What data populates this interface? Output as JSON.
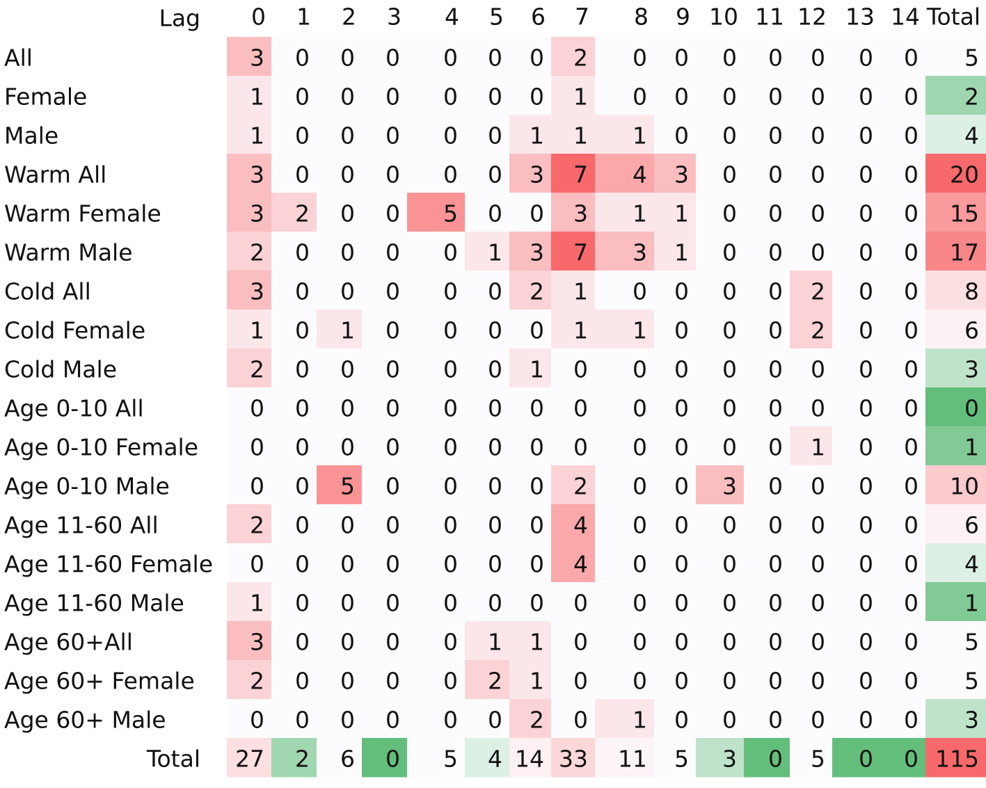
{
  "chart_data": {
    "type": "heatmap",
    "corner_label": "Lag",
    "columns": [
      "0",
      "1",
      "2",
      "3",
      "4",
      "5",
      "6",
      "7",
      "8",
      "9",
      "10",
      "11",
      "12",
      "13",
      "14",
      "Total"
    ],
    "rows": [
      "All",
      "Female",
      "Male",
      "Warm All",
      "Warm Female",
      "Warm Male",
      "Cold All",
      "Cold Female",
      "Cold Male",
      "Age 0-10 All",
      "Age 0-10 Female",
      "Age 0-10 Male",
      "Age 11-60 All",
      "Age 11-60 Female",
      "Age 11-60 Male",
      "Age 60+All",
      "Age 60+ Female",
      "Age 60+ Male",
      "Total"
    ],
    "values": [
      [
        3,
        0,
        0,
        0,
        0,
        0,
        0,
        2,
        0,
        0,
        0,
        0,
        0,
        0,
        0,
        5
      ],
      [
        1,
        0,
        0,
        0,
        0,
        0,
        0,
        1,
        0,
        0,
        0,
        0,
        0,
        0,
        0,
        2
      ],
      [
        1,
        0,
        0,
        0,
        0,
        0,
        1,
        1,
        1,
        0,
        0,
        0,
        0,
        0,
        0,
        4
      ],
      [
        3,
        0,
        0,
        0,
        0,
        0,
        3,
        7,
        4,
        3,
        0,
        0,
        0,
        0,
        0,
        20
      ],
      [
        3,
        2,
        0,
        0,
        5,
        0,
        0,
        3,
        1,
        1,
        0,
        0,
        0,
        0,
        0,
        15
      ],
      [
        2,
        0,
        0,
        0,
        0,
        1,
        3,
        7,
        3,
        1,
        0,
        0,
        0,
        0,
        0,
        17
      ],
      [
        3,
        0,
        0,
        0,
        0,
        0,
        2,
        1,
        0,
        0,
        0,
        0,
        2,
        0,
        0,
        8
      ],
      [
        1,
        0,
        1,
        0,
        0,
        0,
        0,
        1,
        1,
        0,
        0,
        0,
        2,
        0,
        0,
        6
      ],
      [
        2,
        0,
        0,
        0,
        0,
        0,
        1,
        0,
        0,
        0,
        0,
        0,
        0,
        0,
        0,
        3
      ],
      [
        0,
        0,
        0,
        0,
        0,
        0,
        0,
        0,
        0,
        0,
        0,
        0,
        0,
        0,
        0,
        0
      ],
      [
        0,
        0,
        0,
        0,
        0,
        0,
        0,
        0,
        0,
        0,
        0,
        0,
        1,
        0,
        0,
        1
      ],
      [
        0,
        0,
        5,
        0,
        0,
        0,
        0,
        2,
        0,
        0,
        3,
        0,
        0,
        0,
        0,
        10
      ],
      [
        2,
        0,
        0,
        0,
        0,
        0,
        0,
        4,
        0,
        0,
        0,
        0,
        0,
        0,
        0,
        6
      ],
      [
        0,
        0,
        0,
        0,
        0,
        0,
        0,
        4,
        0,
        0,
        0,
        0,
        0,
        0,
        0,
        4
      ],
      [
        1,
        0,
        0,
        0,
        0,
        0,
        0,
        0,
        0,
        0,
        0,
        0,
        0,
        0,
        0,
        1
      ],
      [
        3,
        0,
        0,
        0,
        0,
        1,
        1,
        0,
        0,
        0,
        0,
        0,
        0,
        0,
        0,
        5
      ],
      [
        2,
        0,
        0,
        0,
        0,
        2,
        1,
        0,
        0,
        0,
        0,
        0,
        0,
        0,
        0,
        5
      ],
      [
        0,
        0,
        0,
        0,
        0,
        0,
        2,
        0,
        1,
        0,
        0,
        0,
        0,
        0,
        0,
        3
      ],
      [
        27,
        2,
        6,
        0,
        5,
        4,
        14,
        33,
        11,
        5,
        3,
        0,
        5,
        0,
        0,
        115
      ]
    ],
    "colors": {
      "green": "#63BE7B",
      "white": "#FCFCFF",
      "red": "#F8696B"
    }
  }
}
